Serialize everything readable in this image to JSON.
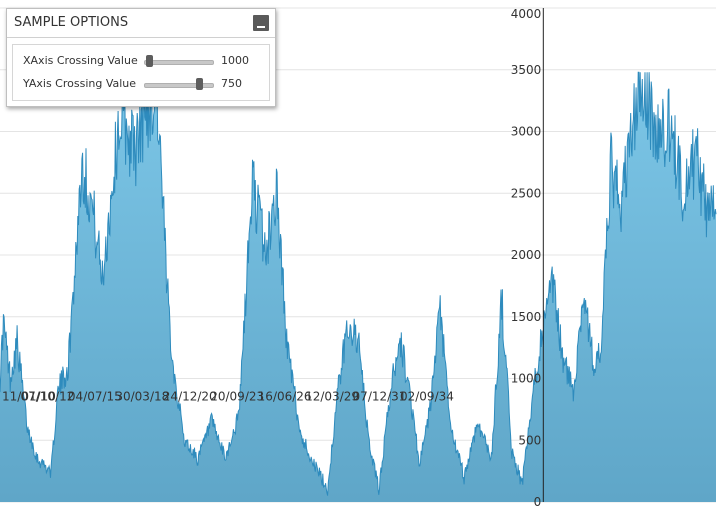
{
  "options_panel": {
    "title": "SAMPLE OPTIONS",
    "options": [
      {
        "label": "XAxis Crossing Value",
        "value": "1000",
        "fraction": 0.07
      },
      {
        "label": "YAxis Crossing Value",
        "value": "750",
        "fraction": 0.78
      }
    ]
  },
  "colors": {
    "area_fill_top": "#7cc6e7",
    "area_fill_bottom": "#5fa6c8",
    "area_stroke": "#2e8bbd",
    "grid": "#e4e4e4"
  },
  "chart_data": {
    "type": "area",
    "title": "",
    "xlabel": "",
    "ylabel": "",
    "grid": true,
    "x_crossing_value": 1000,
    "y_crossing_value": 750,
    "ylim": [
      0,
      4000
    ],
    "y_ticks": [
      0,
      500,
      1000,
      1500,
      2000,
      2500,
      3000,
      3500,
      4000
    ],
    "x_tick_labels": [
      "11/01/10",
      "07/10/12",
      "04/07/15",
      "30/03/18",
      "24/12/20",
      "20/09/23",
      "16/06/26",
      "12/03/29",
      "07/12/31",
      "02/09/34"
    ],
    "x_tick_index": [
      0,
      100,
      200,
      300,
      400,
      500,
      600,
      700,
      800,
      900
    ],
    "n_points": 1050,
    "anchors": [
      [
        0,
        1000
      ],
      [
        5,
        1450
      ],
      [
        15,
        1000
      ],
      [
        25,
        1300
      ],
      [
        40,
        600
      ],
      [
        55,
        350
      ],
      [
        75,
        250
      ],
      [
        85,
        900
      ],
      [
        100,
        1100
      ],
      [
        120,
        2750
      ],
      [
        135,
        2400
      ],
      [
        150,
        1800
      ],
      [
        175,
        3100
      ],
      [
        200,
        2850
      ],
      [
        215,
        3200
      ],
      [
        230,
        3300
      ],
      [
        245,
        1700
      ],
      [
        255,
        1050
      ],
      [
        270,
        500
      ],
      [
        290,
        350
      ],
      [
        310,
        650
      ],
      [
        330,
        350
      ],
      [
        350,
        700
      ],
      [
        370,
        2600
      ],
      [
        390,
        2000
      ],
      [
        405,
        2550
      ],
      [
        420,
        1300
      ],
      [
        440,
        550
      ],
      [
        465,
        250
      ],
      [
        480,
        100
      ],
      [
        495,
        900
      ],
      [
        510,
        1450
      ],
      [
        525,
        1300
      ],
      [
        540,
        500
      ],
      [
        555,
        100
      ],
      [
        570,
        800
      ],
      [
        585,
        1350
      ],
      [
        600,
        900
      ],
      [
        615,
        300
      ],
      [
        630,
        750
      ],
      [
        645,
        1550
      ],
      [
        660,
        600
      ],
      [
        680,
        200
      ],
      [
        700,
        650
      ],
      [
        720,
        350
      ],
      [
        735,
        1650
      ],
      [
        750,
        400
      ],
      [
        765,
        150
      ],
      [
        790,
        1250
      ],
      [
        810,
        1750
      ],
      [
        825,
        1150
      ],
      [
        840,
        900
      ],
      [
        855,
        1700
      ],
      [
        870,
        1100
      ],
      [
        880,
        1200
      ],
      [
        895,
        2700
      ],
      [
        910,
        2400
      ],
      [
        930,
        3150
      ],
      [
        945,
        3400
      ],
      [
        960,
        2950
      ],
      [
        980,
        3050
      ],
      [
        1000,
        2550
      ],
      [
        1020,
        2800
      ],
      [
        1035,
        2350
      ],
      [
        1049,
        2550
      ]
    ]
  }
}
